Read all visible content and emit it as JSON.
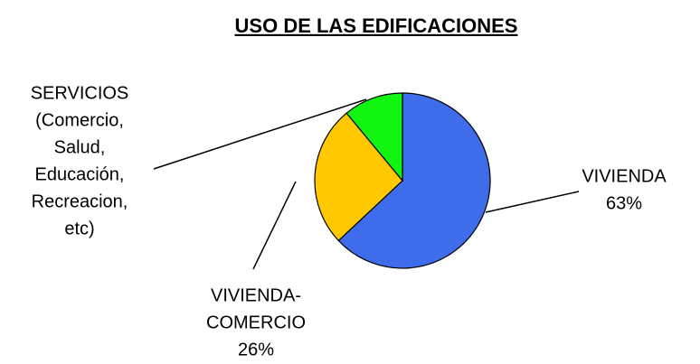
{
  "chart_data": {
    "type": "pie",
    "title": "USO DE LAS EDIFICACIONES",
    "categories": [
      [
        "VIVIENDA"
      ],
      [
        "VIVIENDA-",
        "COMERCIO"
      ],
      [
        "SERVICIOS",
        "(Comercio,",
        "Salud,",
        "Educación,",
        "Recreacion,",
        "etc)"
      ]
    ],
    "values": [
      63,
      26,
      11
    ],
    "value_labels": [
      "63%",
      "26%",
      null
    ],
    "colors": [
      "#3f6cea",
      "#ffc800",
      "#11f511"
    ]
  }
}
